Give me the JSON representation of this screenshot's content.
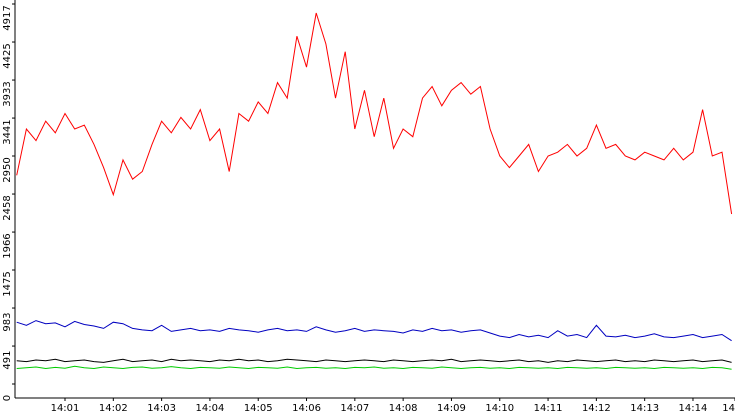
{
  "chart_data": {
    "type": "line",
    "x": [
      0.0,
      0.2,
      0.4,
      0.6,
      0.8,
      1.0,
      1.2,
      1.4,
      1.6,
      1.8,
      2.0,
      2.2,
      2.4,
      2.6,
      2.8,
      3.0,
      3.2,
      3.4,
      3.6,
      3.8,
      4.0,
      4.2,
      4.4,
      4.6,
      4.8,
      5.0,
      5.2,
      5.4,
      5.6,
      5.8,
      6.0,
      6.2,
      6.4,
      6.6,
      6.8,
      7.0,
      7.2,
      7.4,
      7.6,
      7.8,
      8.0,
      8.2,
      8.4,
      8.6,
      8.8,
      9.0,
      9.2,
      9.4,
      9.6,
      9.8,
      10.0,
      10.2,
      10.4,
      10.6,
      10.8,
      11.0,
      11.2,
      11.4,
      11.6,
      11.8,
      12.0,
      12.2,
      12.4,
      12.6,
      12.8,
      13.0,
      13.2,
      13.4,
      13.6,
      13.8,
      14.0,
      14.2,
      14.4,
      14.6,
      14.8
    ],
    "series": [
      {
        "color": "#ff0000",
        "values": [
          2700,
          3300,
          3150,
          3400,
          3250,
          3500,
          3300,
          3350,
          3100,
          2800,
          2450,
          2900,
          2650,
          2750,
          3100,
          3400,
          3250,
          3450,
          3300,
          3550,
          3150,
          3300,
          2750,
          3500,
          3400,
          3650,
          3500,
          3900,
          3700,
          4500,
          4100,
          4800,
          4400,
          3700,
          4300,
          3300,
          3800,
          3200,
          3700,
          3050,
          3300,
          3200,
          3700,
          3850,
          3600,
          3800,
          3900,
          3750,
          3850,
          3300,
          2950,
          2800,
          2950,
          3100,
          2750,
          2950,
          3000,
          3100,
          2950,
          3050,
          3350,
          3050,
          3100,
          2950,
          2900,
          3000,
          2950,
          2900,
          3050,
          2900,
          3000,
          3550,
          2950,
          3000,
          2200
        ]
      },
      {
        "color": "#0000c0",
        "values": [
          800,
          760,
          820,
          780,
          790,
          740,
          810,
          770,
          750,
          720,
          800,
          780,
          720,
          700,
          690,
          760,
          680,
          700,
          720,
          690,
          700,
          680,
          720,
          700,
          690,
          670,
          700,
          720,
          690,
          700,
          680,
          740,
          700,
          670,
          690,
          720,
          680,
          700,
          690,
          680,
          660,
          700,
          680,
          720,
          690,
          700,
          670,
          690,
          700,
          660,
          620,
          600,
          640,
          610,
          630,
          600,
          690,
          620,
          640,
          600,
          760,
          620,
          610,
          630,
          600,
          620,
          650,
          610,
          600,
          620,
          640,
          600,
          620,
          640,
          560
        ]
      },
      {
        "color": "#000000",
        "values": [
          300,
          290,
          310,
          300,
          320,
          290,
          300,
          310,
          290,
          280,
          300,
          320,
          290,
          300,
          310,
          290,
          320,
          300,
          310,
          300,
          290,
          310,
          300,
          320,
          300,
          310,
          290,
          300,
          320,
          310,
          300,
          290,
          310,
          300,
          290,
          300,
          310,
          300,
          290,
          310,
          300,
          290,
          300,
          310,
          300,
          320,
          290,
          300,
          310,
          300,
          290,
          300,
          310,
          290,
          300,
          280,
          300,
          290,
          310,
          300,
          290,
          300,
          310,
          290,
          300,
          290,
          310,
          300,
          290,
          300,
          310,
          290,
          300,
          310,
          280
        ]
      },
      {
        "color": "#00cc00",
        "values": [
          200,
          210,
          220,
          200,
          215,
          205,
          230,
          210,
          200,
          220,
          210,
          200,
          215,
          220,
          205,
          210,
          225,
          210,
          200,
          215,
          210,
          205,
          220,
          210,
          200,
          215,
          210,
          205,
          220,
          200,
          210,
          215,
          205,
          210,
          200,
          215,
          210,
          220,
          205,
          210,
          200,
          215,
          210,
          205,
          220,
          210,
          200,
          210,
          215,
          205,
          210,
          200,
          215,
          210,
          205,
          210,
          200,
          215,
          210,
          205,
          210,
          200,
          215,
          210,
          205,
          210,
          200,
          215,
          210,
          205,
          210,
          200,
          215,
          210,
          190
        ]
      }
    ],
    "xlim": [
      0,
      14.87
    ],
    "xticks": [
      {
        "value": 1,
        "label": "14:01"
      },
      {
        "value": 2,
        "label": "14:02"
      },
      {
        "value": 3,
        "label": "14:03"
      },
      {
        "value": 4,
        "label": "14:04"
      },
      {
        "value": 5,
        "label": "14:05"
      },
      {
        "value": 6,
        "label": "14:06"
      },
      {
        "value": 7,
        "label": "14:07"
      },
      {
        "value": 8,
        "label": "14:08"
      },
      {
        "value": 9,
        "label": "14:09"
      },
      {
        "value": 10,
        "label": "14:10"
      },
      {
        "value": 11,
        "label": "14:11"
      },
      {
        "value": 12,
        "label": "14:12"
      },
      {
        "value": 13,
        "label": "14:13"
      },
      {
        "value": 14,
        "label": "14:14"
      },
      {
        "value": 14.87,
        "label": "14"
      }
    ],
    "ylim": [
      0,
      4917
    ],
    "yticks": [
      0,
      491,
      983,
      1475,
      1966,
      2458,
      2950,
      3441,
      3933,
      4425,
      4917
    ]
  }
}
